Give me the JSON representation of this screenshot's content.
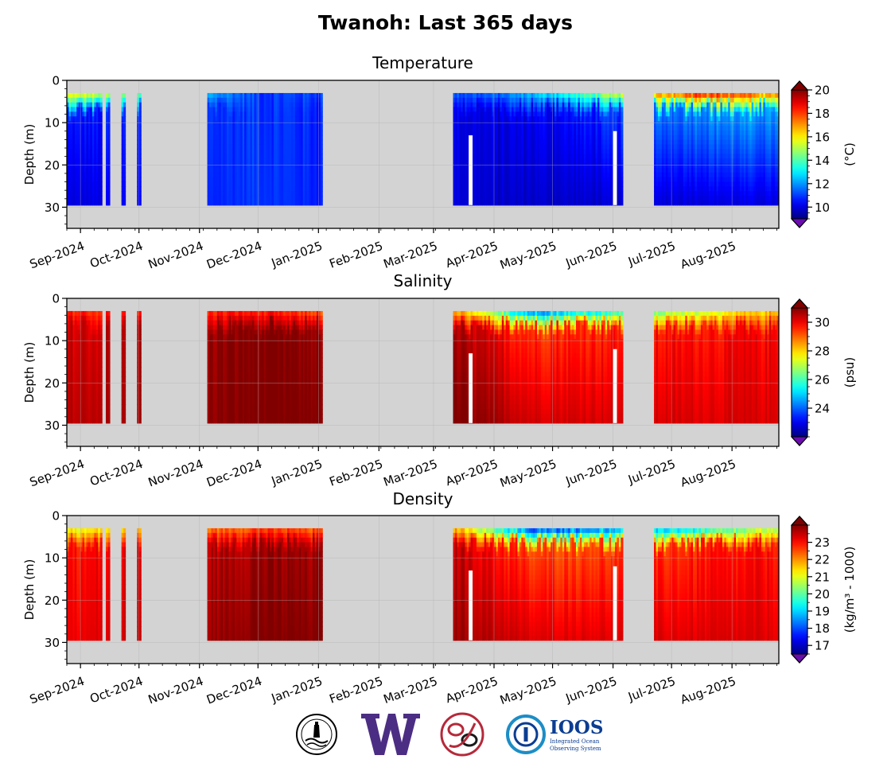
{
  "figure": {
    "title": "Twanoh: Last 365 days"
  },
  "colors": {
    "no_data_background": "#d3d3d3",
    "gap_white": "#ffffff",
    "jet_low": "#00007f",
    "jet_high": "#7f0000",
    "extend_low": "#6a0dad",
    "extend_high": "#7f0000"
  },
  "logos": [
    {
      "name": "hood-canal-dissolved-oxygen-seal",
      "color": "#000000"
    },
    {
      "name": "uw-w-logo",
      "color": "#4b2e83"
    },
    {
      "name": "tribal-formline-logo",
      "color": "#b5293a"
    },
    {
      "name": "ioos-logo",
      "text": "IOOS",
      "subtext": "Integrated Ocean Observing System",
      "color": "#0b3d91"
    }
  ],
  "chart_data": [
    {
      "type": "heatmap",
      "title": "Temperature",
      "ylabel": "Depth (m)",
      "ylim": [
        35,
        0
      ],
      "yticks": [
        "0",
        "10",
        "20",
        "30"
      ],
      "xticks": [
        "Sep-2024",
        "Oct-2024",
        "Nov-2024",
        "Dec-2024",
        "Jan-2025",
        "Feb-2025",
        "Mar-2025",
        "Apr-2025",
        "May-2025",
        "Jun-2025",
        "Jul-2025",
        "Aug-2025"
      ],
      "x_range": [
        "2024-08-25",
        "2025-08-25"
      ],
      "grid": true,
      "colorbar": {
        "label": "(°C)",
        "range": [
          9,
          20
        ],
        "ticks": [
          "10",
          "12",
          "14",
          "16",
          "18",
          "20"
        ],
        "extend": "both"
      },
      "data_segments": [
        {
          "start": "2024-08-25",
          "end": "2024-09-11",
          "depth": [
            3,
            29.5
          ]
        },
        {
          "start": "2024-09-14",
          "end": "2024-09-15",
          "depth": [
            3,
            29.5
          ]
        },
        {
          "start": "2024-09-22",
          "end": "2024-09-23",
          "depth": [
            3,
            29.5
          ]
        },
        {
          "start": "2024-09-30",
          "end": "2024-10-01",
          "depth": [
            3,
            29.5
          ]
        },
        {
          "start": "2024-11-05",
          "end": "2025-01-02",
          "depth": [
            3,
            29.5
          ]
        },
        {
          "start": "2025-03-11",
          "end": "2025-06-05",
          "depth": [
            3,
            29.5
          ]
        },
        {
          "start": "2025-06-22",
          "end": "2025-08-31",
          "depth": [
            3,
            29.5
          ]
        }
      ],
      "gaps": [
        {
          "start": "2025-03-19",
          "end": "2025-03-20",
          "depth": [
            13,
            29.5
          ]
        },
        {
          "start": "2025-06-01",
          "end": "2025-06-02",
          "depth": [
            12,
            29.5
          ]
        }
      ],
      "profile": [
        {
          "date": "2024-09-01",
          "surface": 16,
          "mid": 10.5,
          "bottom": 10
        },
        {
          "date": "2024-12-01",
          "surface": 11,
          "mid": 11,
          "bottom": 11
        },
        {
          "date": "2025-04-01",
          "surface": 11.5,
          "mid": 10,
          "bottom": 9.8
        },
        {
          "date": "2025-05-15",
          "surface": 14,
          "mid": 10.5,
          "bottom": 9.8
        },
        {
          "date": "2025-07-15",
          "surface": 19,
          "mid": 12,
          "bottom": 10
        },
        {
          "date": "2025-08-20",
          "surface": 17.5,
          "mid": 12,
          "bottom": 10
        }
      ]
    },
    {
      "type": "heatmap",
      "title": "Salinity",
      "ylabel": "Depth (m)",
      "ylim": [
        35,
        0
      ],
      "yticks": [
        "0",
        "10",
        "20",
        "30"
      ],
      "xticks": [
        "Sep-2024",
        "Oct-2024",
        "Nov-2024",
        "Dec-2024",
        "Jan-2025",
        "Feb-2025",
        "Mar-2025",
        "Apr-2025",
        "May-2025",
        "Jun-2025",
        "Jul-2025",
        "Aug-2025"
      ],
      "x_range": [
        "2024-08-25",
        "2025-08-25"
      ],
      "grid": true,
      "colorbar": {
        "label": "(psu)",
        "range": [
          22,
          31
        ],
        "ticks": [
          "24",
          "26",
          "28",
          "30"
        ],
        "extend": "both"
      },
      "data_segments": [
        {
          "start": "2024-08-25",
          "end": "2024-09-11",
          "depth": [
            3,
            29.5
          ]
        },
        {
          "start": "2024-09-14",
          "end": "2024-09-15",
          "depth": [
            3,
            29.5
          ]
        },
        {
          "start": "2024-09-22",
          "end": "2024-09-23",
          "depth": [
            3,
            29.5
          ]
        },
        {
          "start": "2024-09-30",
          "end": "2024-10-01",
          "depth": [
            3,
            29.5
          ]
        },
        {
          "start": "2024-11-05",
          "end": "2025-01-02",
          "depth": [
            3,
            29.5
          ]
        },
        {
          "start": "2025-03-11",
          "end": "2025-06-05",
          "depth": [
            3,
            29.5
          ]
        },
        {
          "start": "2025-06-22",
          "end": "2025-08-31",
          "depth": [
            3,
            29.5
          ]
        }
      ],
      "gaps": [
        {
          "start": "2025-03-19",
          "end": "2025-03-20",
          "depth": [
            13,
            29.5
          ]
        },
        {
          "start": "2025-06-01",
          "end": "2025-06-02",
          "depth": [
            12,
            29.5
          ]
        }
      ],
      "profile": [
        {
          "date": "2024-09-01",
          "surface": 29.5,
          "mid": 30.3,
          "bottom": 30.5
        },
        {
          "date": "2024-12-01",
          "surface": 29.5,
          "mid": 31,
          "bottom": 31
        },
        {
          "date": "2025-03-15",
          "surface": 28,
          "mid": 30.5,
          "bottom": 31
        },
        {
          "date": "2025-04-20",
          "surface": 24,
          "mid": 29.5,
          "bottom": 30.3
        },
        {
          "date": "2025-07-15",
          "surface": 27,
          "mid": 29.8,
          "bottom": 30.2
        },
        {
          "date": "2025-08-20",
          "surface": 28,
          "mid": 29.9,
          "bottom": 30.2
        }
      ]
    },
    {
      "type": "heatmap",
      "title": "Density",
      "ylabel": "Depth (m)",
      "ylim": [
        35,
        0
      ],
      "yticks": [
        "0",
        "10",
        "20",
        "30"
      ],
      "xticks": [
        "Sep-2024",
        "Oct-2024",
        "Nov-2024",
        "Dec-2024",
        "Jan-2025",
        "Feb-2025",
        "Mar-2025",
        "Apr-2025",
        "May-2025",
        "Jun-2025",
        "Jul-2025",
        "Aug-2025"
      ],
      "x_range": [
        "2024-08-25",
        "2025-08-25"
      ],
      "grid": true,
      "colorbar": {
        "label": "(kg/m³ - 1000)",
        "range": [
          16.5,
          24
        ],
        "ticks": [
          "17",
          "18",
          "19",
          "20",
          "21",
          "22",
          "23"
        ],
        "extend": "both"
      },
      "data_segments": [
        {
          "start": "2024-08-25",
          "end": "2024-09-11",
          "depth": [
            3,
            29.5
          ]
        },
        {
          "start": "2024-09-14",
          "end": "2024-09-15",
          "depth": [
            3,
            29.5
          ]
        },
        {
          "start": "2024-09-22",
          "end": "2024-09-23",
          "depth": [
            3,
            29.5
          ]
        },
        {
          "start": "2024-09-30",
          "end": "2024-10-01",
          "depth": [
            3,
            29.5
          ]
        },
        {
          "start": "2024-11-05",
          "end": "2025-01-02",
          "depth": [
            3,
            29.5
          ]
        },
        {
          "start": "2025-03-11",
          "end": "2025-06-05",
          "depth": [
            3,
            29.5
          ]
        },
        {
          "start": "2025-06-22",
          "end": "2025-08-31",
          "depth": [
            3,
            29.5
          ]
        }
      ],
      "gaps": [
        {
          "start": "2025-03-19",
          "end": "2025-03-20",
          "depth": [
            13,
            29.5
          ]
        },
        {
          "start": "2025-06-01",
          "end": "2025-06-02",
          "depth": [
            12,
            29.5
          ]
        }
      ],
      "profile": [
        {
          "date": "2024-09-01",
          "surface": 21,
          "mid": 23,
          "bottom": 23.2
        },
        {
          "date": "2024-12-01",
          "surface": 22.5,
          "mid": 23.8,
          "bottom": 24
        },
        {
          "date": "2025-03-15",
          "surface": 21.5,
          "mid": 23.5,
          "bottom": 23.8
        },
        {
          "date": "2025-04-20",
          "surface": 17.5,
          "mid": 22.5,
          "bottom": 23.3
        },
        {
          "date": "2025-07-15",
          "surface": 19,
          "mid": 22.8,
          "bottom": 23.3
        },
        {
          "date": "2025-08-20",
          "surface": 20.5,
          "mid": 23,
          "bottom": 23.3
        }
      ]
    }
  ]
}
